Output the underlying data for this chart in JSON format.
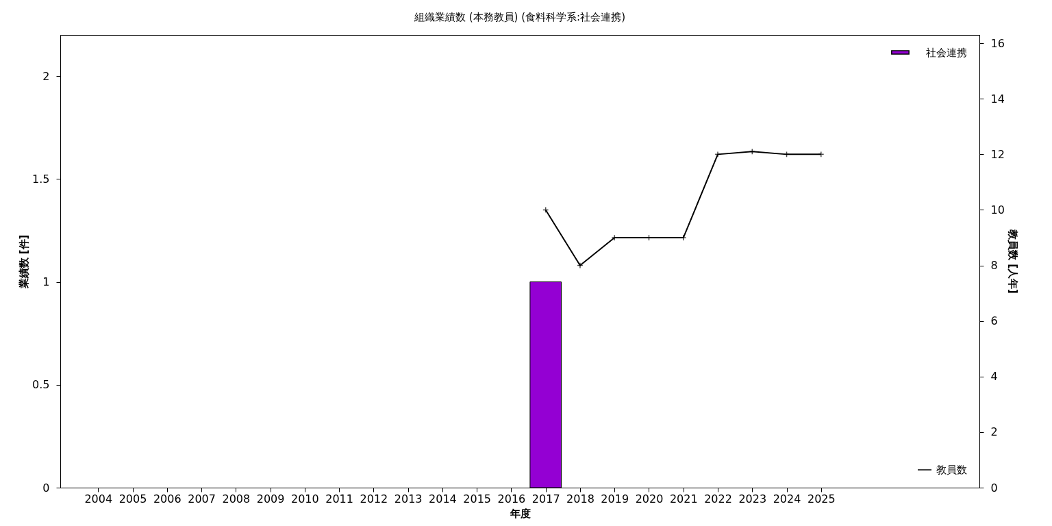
{
  "chart_data": {
    "type": "bar",
    "title": "組織業績数 (本務教員) (食料科学系:社会連携)",
    "xlabel": "年度",
    "ylabel": "業績数 [件]",
    "y2label": "教員数 [人年]",
    "xlim": [
      2003,
      2029.5
    ],
    "xticks": [
      2004,
      2005,
      2006,
      2007,
      2008,
      2009,
      2010,
      2011,
      2012,
      2013,
      2014,
      2015,
      2016,
      2017,
      2018,
      2019,
      2020,
      2021,
      2022,
      2023,
      2024,
      2025
    ],
    "ylim": [
      0,
      2.2
    ],
    "yticks": [
      0,
      0.5,
      1,
      1.5,
      2
    ],
    "y2lim": [
      0,
      16.3
    ],
    "y2ticks": [
      0,
      2,
      4,
      6,
      8,
      10,
      12,
      14,
      16
    ],
    "grid": false,
    "legend": "top right",
    "series": [
      {
        "name": "社会連携",
        "color": "#9400d3",
        "x": [
          2017
        ],
        "values": [
          1
        ]
      },
      {
        "name": "教員数",
        "type": "line",
        "axis": "y2",
        "color": "#000000",
        "marker": "cross",
        "line_style": "solid",
        "x": [
          2017,
          2018,
          2019,
          2020,
          2021,
          2022,
          2023,
          2024,
          2025
        ],
        "values": [
          10,
          8,
          9,
          9,
          9,
          12,
          12.1,
          12,
          12
        ]
      }
    ]
  }
}
